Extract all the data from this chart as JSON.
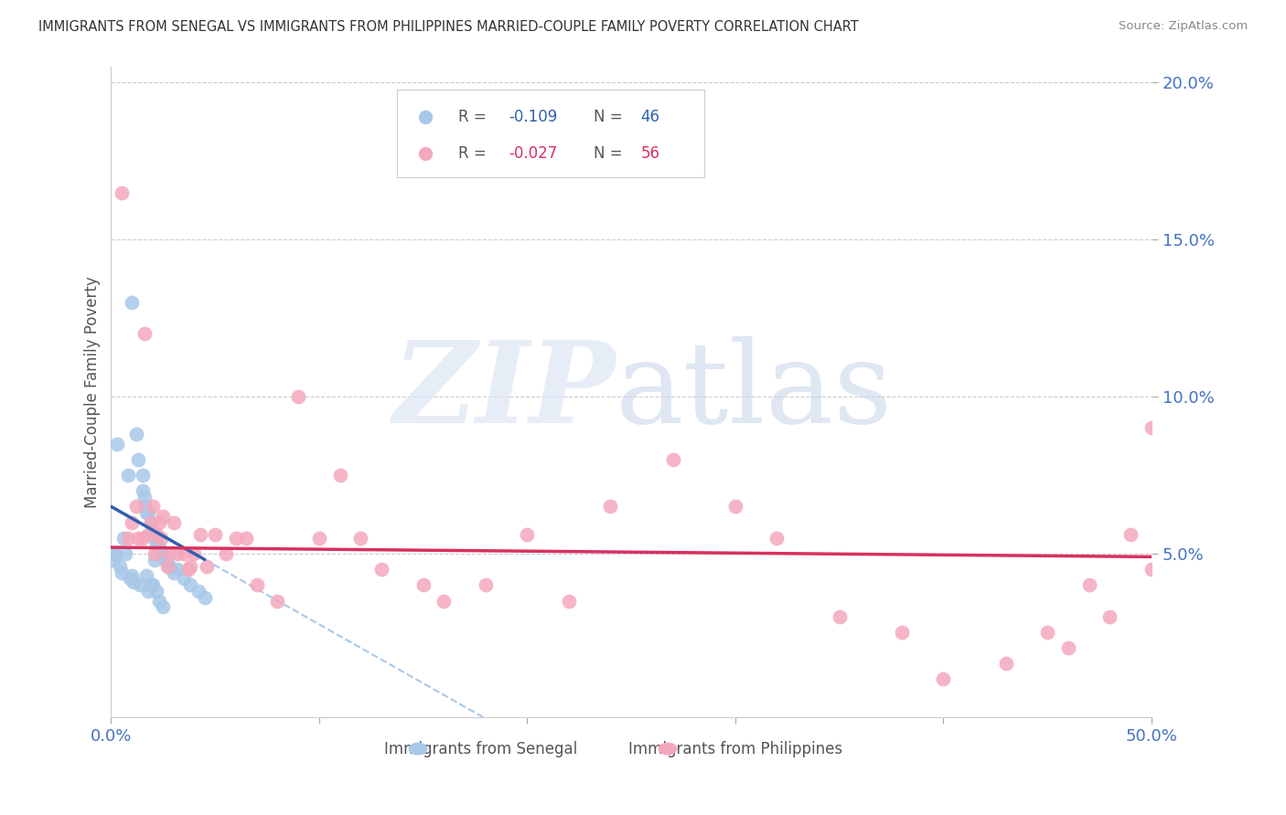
{
  "title": "IMMIGRANTS FROM SENEGAL VS IMMIGRANTS FROM PHILIPPINES MARRIED-COUPLE FAMILY POVERTY CORRELATION CHART",
  "source": "Source: ZipAtlas.com",
  "ylabel": "Married-Couple Family Poverty",
  "xlim": [
    0.0,
    0.5
  ],
  "ylim": [
    -0.002,
    0.205
  ],
  "yticks": [
    0.05,
    0.1,
    0.15,
    0.2
  ],
  "ytick_labels": [
    "5.0%",
    "10.0%",
    "15.0%",
    "20.0%"
  ],
  "xticks": [
    0.0,
    0.1,
    0.2,
    0.3,
    0.4,
    0.5
  ],
  "xtick_labels": [
    "0.0%",
    "",
    "",
    "",
    "",
    "50.0%"
  ],
  "senegal_color": "#a8c8e8",
  "philippines_color": "#f4a8bc",
  "senegal_line_color": "#3060b0",
  "philippines_line_color": "#d83060",
  "dashed_line_color": "#a8c8e8",
  "axis_tick_color": "#4472c4",
  "legend_r1_val": "-0.109",
  "legend_n1_val": "46",
  "legend_r2_val": "-0.027",
  "legend_n2_val": "56",
  "senegal_x": [
    0.001,
    0.001,
    0.002,
    0.003,
    0.004,
    0.005,
    0.006,
    0.007,
    0.008,
    0.009,
    0.01,
    0.01,
    0.011,
    0.012,
    0.013,
    0.014,
    0.015,
    0.015,
    0.016,
    0.016,
    0.017,
    0.017,
    0.018,
    0.018,
    0.019,
    0.019,
    0.02,
    0.02,
    0.021,
    0.021,
    0.022,
    0.022,
    0.023,
    0.023,
    0.024,
    0.025,
    0.025,
    0.026,
    0.027,
    0.028,
    0.03,
    0.032,
    0.035,
    0.038,
    0.042,
    0.045
  ],
  "senegal_y": [
    0.05,
    0.048,
    0.05,
    0.085,
    0.046,
    0.044,
    0.055,
    0.05,
    0.075,
    0.042,
    0.13,
    0.043,
    0.041,
    0.088,
    0.08,
    0.04,
    0.075,
    0.07,
    0.068,
    0.065,
    0.063,
    0.043,
    0.063,
    0.038,
    0.06,
    0.04,
    0.057,
    0.04,
    0.055,
    0.048,
    0.053,
    0.038,
    0.052,
    0.035,
    0.05,
    0.05,
    0.033,
    0.048,
    0.047,
    0.046,
    0.044,
    0.045,
    0.042,
    0.04,
    0.038,
    0.036
  ],
  "philippines_x": [
    0.005,
    0.008,
    0.01,
    0.012,
    0.013,
    0.015,
    0.016,
    0.018,
    0.019,
    0.02,
    0.021,
    0.022,
    0.023,
    0.024,
    0.025,
    0.027,
    0.028,
    0.03,
    0.032,
    0.035,
    0.037,
    0.038,
    0.04,
    0.043,
    0.046,
    0.05,
    0.055,
    0.06,
    0.065,
    0.07,
    0.08,
    0.09,
    0.1,
    0.11,
    0.12,
    0.13,
    0.15,
    0.16,
    0.18,
    0.2,
    0.22,
    0.24,
    0.27,
    0.3,
    0.32,
    0.35,
    0.38,
    0.4,
    0.43,
    0.45,
    0.46,
    0.47,
    0.48,
    0.49,
    0.5,
    0.5
  ],
  "philippines_y": [
    0.165,
    0.055,
    0.06,
    0.065,
    0.055,
    0.055,
    0.12,
    0.056,
    0.06,
    0.065,
    0.05,
    0.056,
    0.06,
    0.055,
    0.062,
    0.046,
    0.05,
    0.06,
    0.05,
    0.05,
    0.045,
    0.046,
    0.05,
    0.056,
    0.046,
    0.056,
    0.05,
    0.055,
    0.055,
    0.04,
    0.035,
    0.1,
    0.055,
    0.075,
    0.055,
    0.045,
    0.04,
    0.035,
    0.04,
    0.056,
    0.035,
    0.065,
    0.08,
    0.065,
    0.055,
    0.03,
    0.025,
    0.01,
    0.015,
    0.025,
    0.02,
    0.04,
    0.03,
    0.056,
    0.045,
    0.09
  ]
}
